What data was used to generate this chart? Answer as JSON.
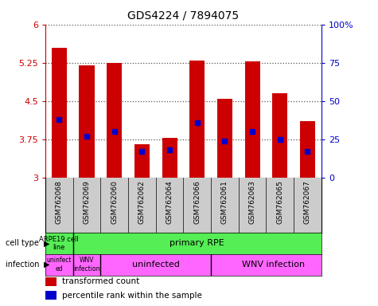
{
  "title": "GDS4224 / 7894075",
  "samples": [
    "GSM762068",
    "GSM762069",
    "GSM762060",
    "GSM762062",
    "GSM762064",
    "GSM762066",
    "GSM762061",
    "GSM762063",
    "GSM762065",
    "GSM762067"
  ],
  "transformed_count": [
    5.55,
    5.2,
    5.25,
    3.65,
    3.78,
    5.3,
    4.55,
    5.28,
    4.65,
    4.1
  ],
  "percentile_rank": [
    38,
    27,
    30,
    17,
    18,
    36,
    24,
    30,
    25,
    17
  ],
  "ymin": 3.0,
  "ymax": 6.0,
  "yticks": [
    3.0,
    3.75,
    4.5,
    5.25,
    6.0
  ],
  "ytick_labels": [
    "3",
    "3.75",
    "4.5",
    "5.25",
    "6"
  ],
  "right_yticks": [
    0,
    25,
    50,
    75,
    100
  ],
  "right_ytick_labels": [
    "0",
    "25",
    "50",
    "75",
    "100%"
  ],
  "bar_color": "#cc0000",
  "dot_color": "#0000cc",
  "dotted_line_color": "#555555",
  "axis_color_left": "#cc0000",
  "axis_color_right": "#0000cc",
  "bar_width": 0.55,
  "cell_type_divider": 0.5,
  "infection_dividers": [
    0.5,
    1.5,
    5.5
  ],
  "cell_type_bg": "#55ee55",
  "infection_bg": "#ff66ff",
  "xlabels_bg": "#cccccc",
  "legend_items": [
    {
      "color": "#cc0000",
      "label": "transformed count"
    },
    {
      "color": "#0000cc",
      "label": "percentile rank within the sample"
    }
  ]
}
